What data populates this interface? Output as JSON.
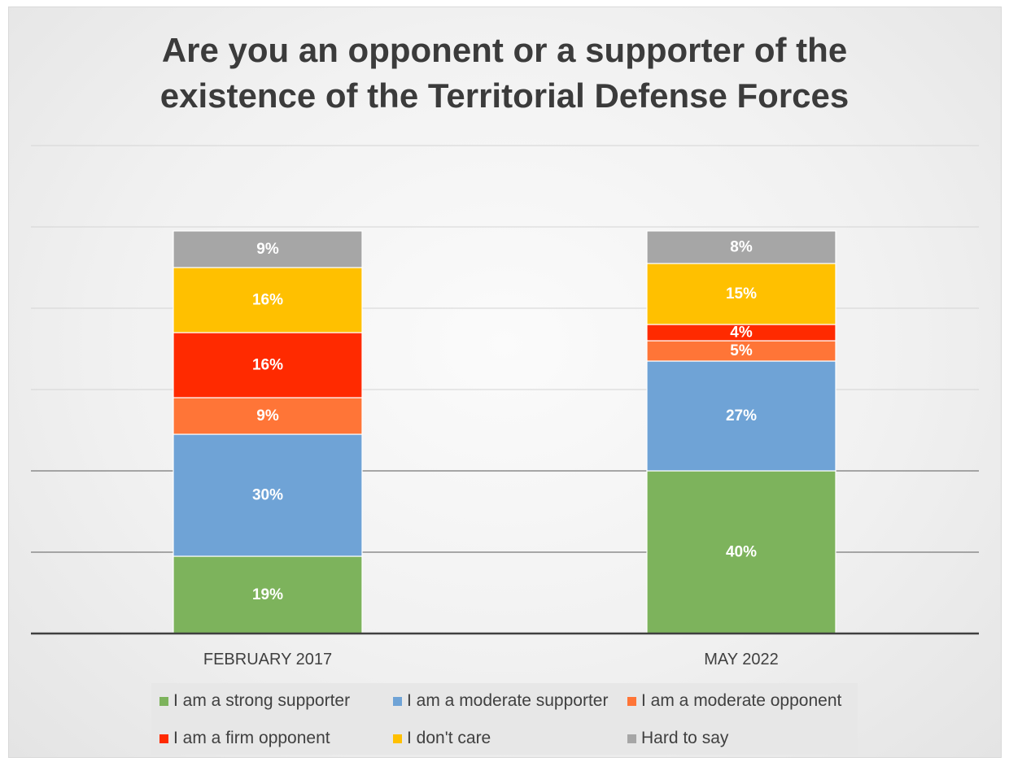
{
  "chart_data": {
    "type": "bar",
    "stacked": true,
    "title": "Are you an opponent or a supporter of the existence of the Territorial Defense Forces",
    "title_lines": [
      "Are you an opponent or a supporter of the",
      "existence of the Territorial Defense Forces"
    ],
    "categories": [
      "FEBRUARY 2017",
      "MAY 2022"
    ],
    "series": [
      {
        "name": "I am a strong supporter",
        "values": [
          19,
          40
        ],
        "labels": [
          "19%",
          "40%"
        ],
        "color": "#7db35c"
      },
      {
        "name": "I am a moderate supporter",
        "values": [
          30,
          27
        ],
        "labels": [
          "30%",
          "27%"
        ],
        "color": "#6fa3d6"
      },
      {
        "name": "I am a moderate opponent",
        "values": [
          9,
          5
        ],
        "labels": [
          "9%",
          "5%"
        ],
        "color": "#ff7537"
      },
      {
        "name": "I am a firm opponent",
        "values": [
          16,
          4
        ],
        "labels": [
          "16%",
          "4%"
        ],
        "color": "#ff2a00"
      },
      {
        "name": "I don't care",
        "values": [
          16,
          15
        ],
        "labels": [
          "16%",
          "15%"
        ],
        "color": "#ffc000"
      },
      {
        "name": "Hard to say",
        "values": [
          9,
          8
        ],
        "labels": [
          "9%",
          "8%"
        ],
        "color": "#a6a6a6"
      }
    ],
    "ylim": [
      0,
      120
    ],
    "grid": true,
    "xlabel": "",
    "ylabel": "",
    "legend_position": "bottom"
  }
}
